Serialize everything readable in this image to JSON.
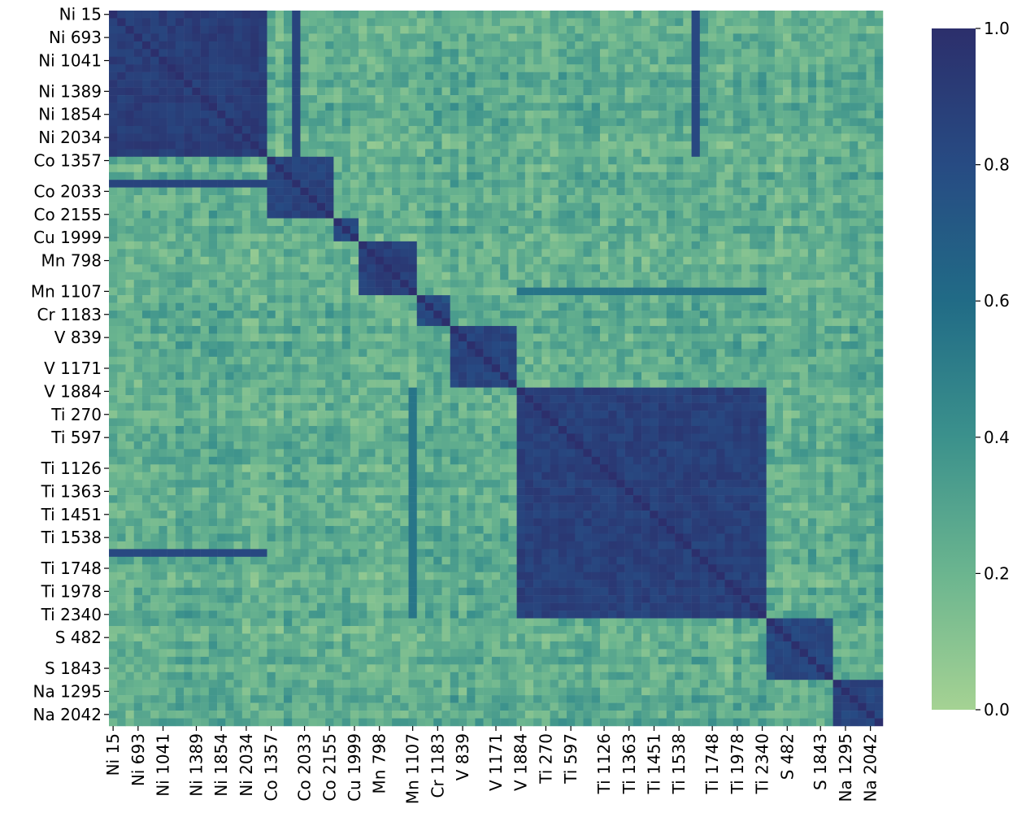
{
  "chart_data": {
    "type": "heatmap",
    "title": "",
    "xlabel": "",
    "ylabel": "",
    "colormap": "crest",
    "color_stops": [
      "#a5d293",
      "#6bb58f",
      "#3b918c",
      "#216b86",
      "#274b83",
      "#2c2f6c"
    ],
    "vmin": 0.0,
    "vmax": 1.0,
    "colorbar_ticks": [
      "0.0",
      "0.2",
      "0.4",
      "0.6",
      "0.8",
      "1.0"
    ],
    "n_cells": 93,
    "tick_labels": [
      "Ni 15",
      "Ni 693",
      "Ni 1041",
      "Ni 1389",
      "Ni 1854",
      "Ni 2034",
      "Co 1357",
      "Co 2033",
      "Co 2155",
      "Cu 1999",
      "Mn 798",
      "Mn 1107",
      "Cr 1183",
      "V 839",
      "V 1171",
      "V 1884",
      "Ti 270",
      "Ti 597",
      "Ti 1126",
      "Ti 1363",
      "Ti 1451",
      "Ti 1538",
      "Ti 1748",
      "Ti 1978",
      "Ti 2340",
      "S 482",
      "S 1843",
      "Na 1295",
      "Na 2042"
    ],
    "tick_cell_index": [
      0,
      3,
      6,
      10,
      13,
      16,
      19,
      23,
      26,
      29,
      32,
      36,
      39,
      42,
      46,
      49,
      52,
      55,
      59,
      62,
      65,
      68,
      72,
      75,
      78,
      81,
      85,
      88,
      91
    ],
    "blocks": [
      {
        "element": "Ni",
        "range": [
          0,
          19
        ],
        "within": 0.9
      },
      {
        "element": "Co",
        "range": [
          19,
          27
        ],
        "within": 0.85
      },
      {
        "element": "Cu",
        "range": [
          27,
          30
        ],
        "within": 0.8
      },
      {
        "element": "Mn",
        "range": [
          30,
          37
        ],
        "within": 0.88
      },
      {
        "element": "Cr",
        "range": [
          37,
          41
        ],
        "within": 0.8
      },
      {
        "element": "V",
        "range": [
          41,
          49
        ],
        "within": 0.85
      },
      {
        "element": "Ti",
        "range": [
          49,
          79
        ],
        "within": 0.88
      },
      {
        "element": "S",
        "range": [
          79,
          87
        ],
        "within": 0.82
      },
      {
        "element": "Na",
        "range": [
          87,
          93
        ],
        "within": 0.85
      }
    ],
    "highlight_lines": [
      {
        "row_cell": 22,
        "cols": [
          0,
          19
        ],
        "value": 0.85
      },
      {
        "row_cell": 70,
        "cols": [
          0,
          19
        ],
        "value": 0.8
      },
      {
        "row_cell": 36,
        "cols": [
          49,
          79
        ],
        "value": 0.55
      },
      {
        "col_cell": 22,
        "rows": [
          0,
          19
        ],
        "value": 0.85
      },
      {
        "col_cell": 70,
        "rows": [
          0,
          19
        ],
        "value": 0.82
      }
    ]
  }
}
